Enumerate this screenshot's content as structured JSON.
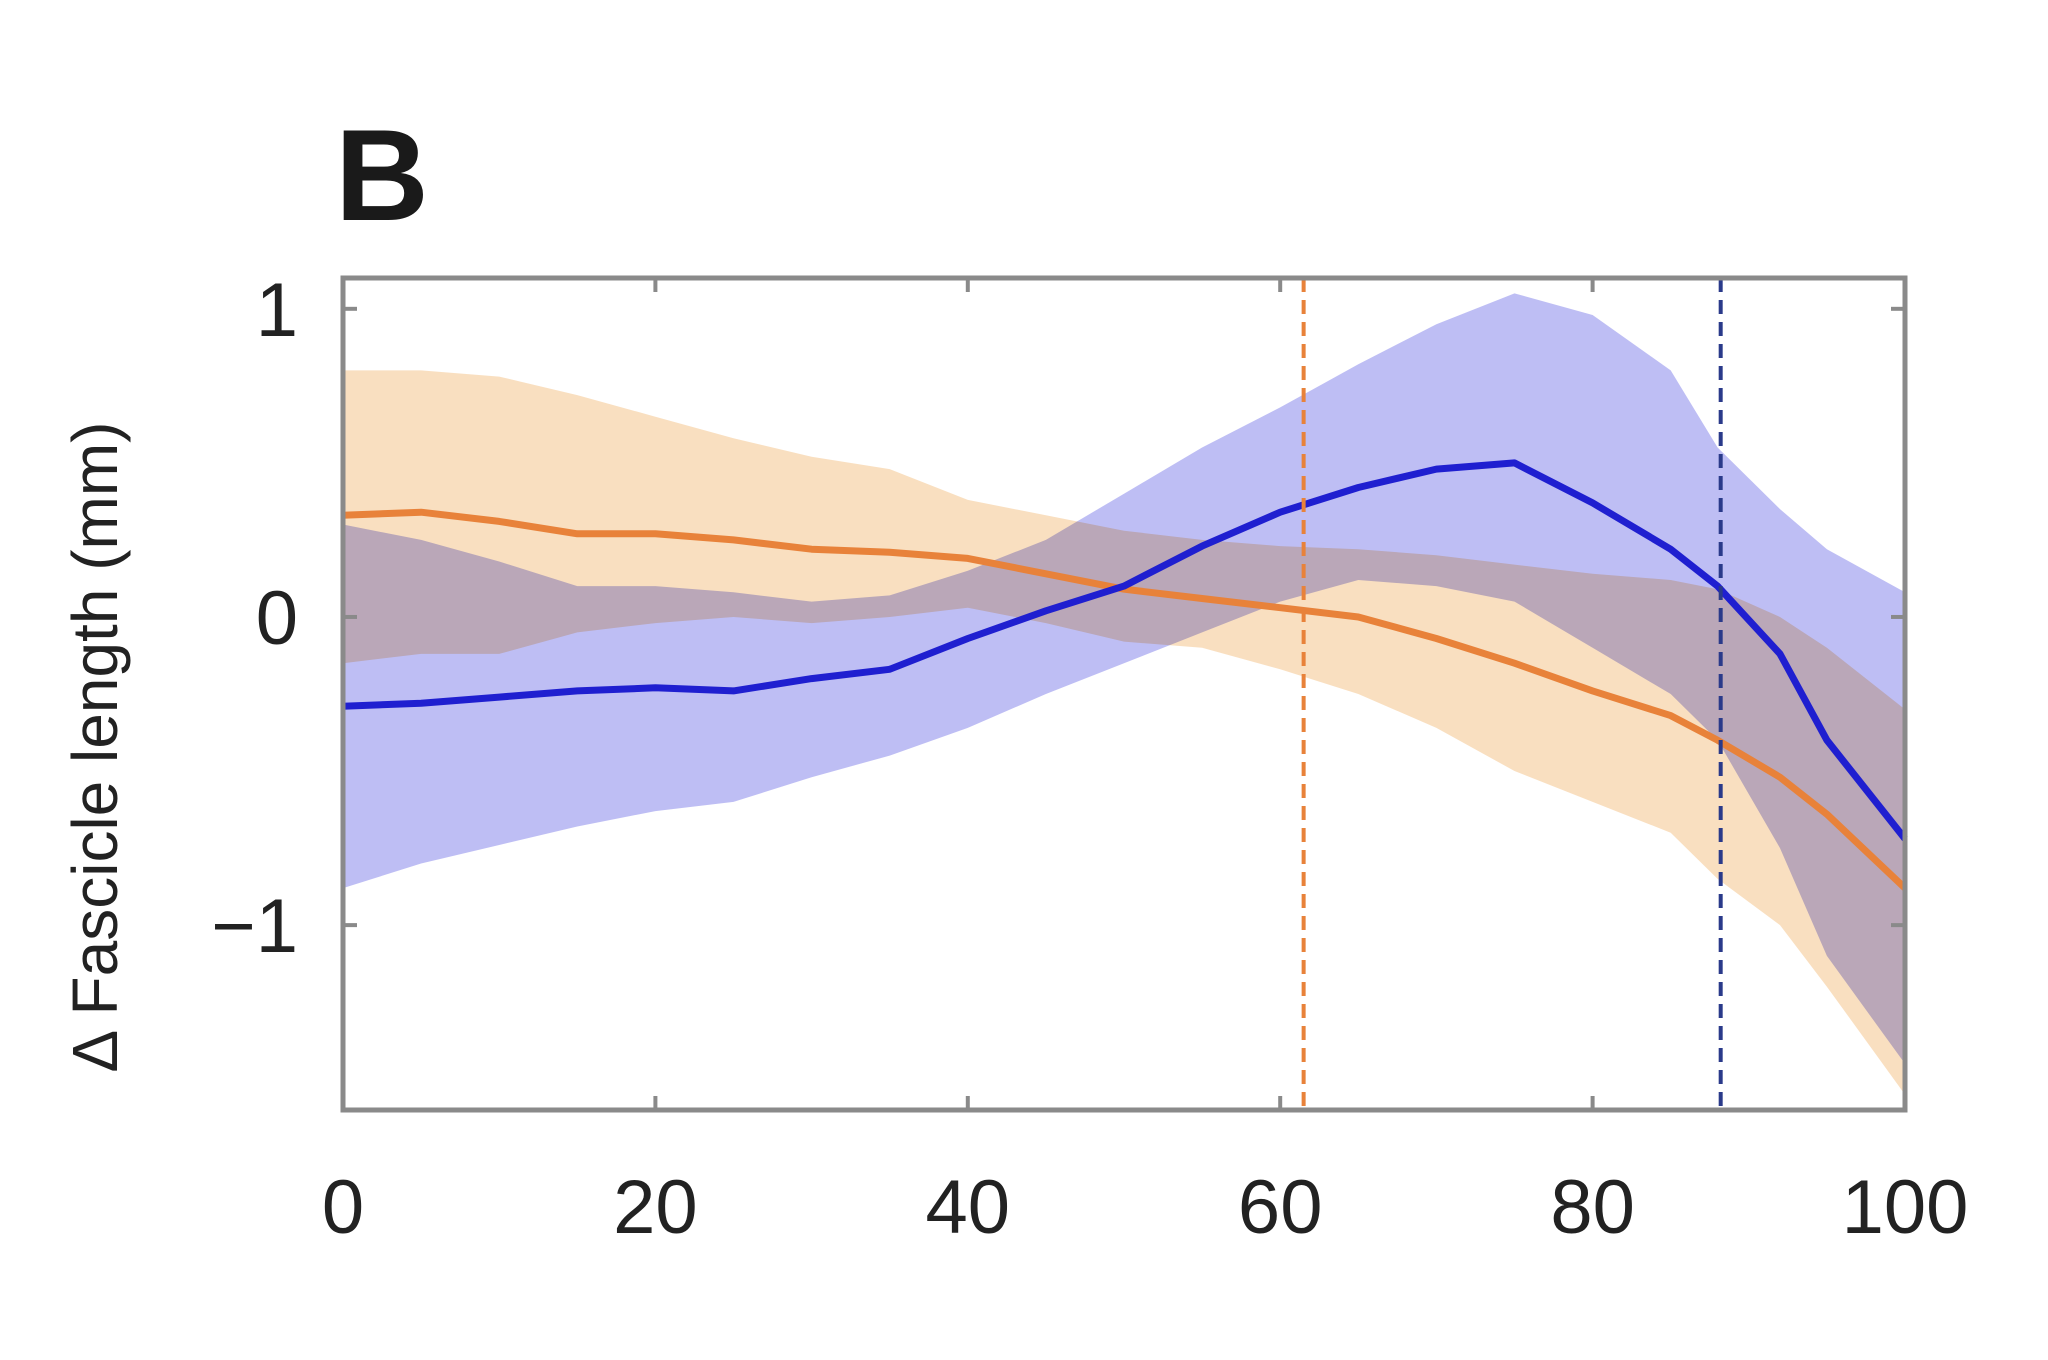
{
  "panel_label": "B",
  "chart_data": {
    "type": "line",
    "title": "",
    "xlabel": "",
    "ylabel": "Δ Fascicle length (mm)",
    "xlim": [
      0,
      100
    ],
    "ylim": [
      -1.6,
      1.1
    ],
    "xticks": [
      0,
      20,
      40,
      60,
      80,
      100
    ],
    "xtick_labels": [
      "0",
      "20",
      "40",
      "60",
      "80",
      "100"
    ],
    "yticks": [
      -1,
      0,
      1
    ],
    "ytick_labels": [
      "−1",
      "0",
      "1"
    ],
    "grid": false,
    "legend": "none",
    "colors": {
      "blue_line": "#1f1fd0",
      "blue_band": "#b8b8f4",
      "orange_line": "#e8823a",
      "orange_band": "#f9ddbd",
      "overlap": "#b89cbf",
      "axis": "#8a8a8a",
      "blue_marker": "#2a3a8a",
      "orange_marker": "#e8823a"
    },
    "series": [
      {
        "color": "blue",
        "x": [
          0,
          5,
          10,
          15,
          20,
          25,
          30,
          35,
          40,
          45,
          50,
          55,
          60,
          65,
          70,
          75,
          80,
          85,
          88,
          92,
          95,
          100
        ],
        "y": [
          -0.29,
          -0.28,
          -0.26,
          -0.24,
          -0.23,
          -0.24,
          -0.2,
          -0.17,
          -0.07,
          0.02,
          0.1,
          0.23,
          0.34,
          0.42,
          0.48,
          0.5,
          0.37,
          0.22,
          0.1,
          -0.12,
          -0.4,
          -0.72
        ],
        "lower": [
          -0.88,
          -0.8,
          -0.74,
          -0.68,
          -0.63,
          -0.6,
          -0.52,
          -0.45,
          -0.36,
          -0.25,
          -0.15,
          -0.05,
          0.05,
          0.12,
          0.1,
          0.05,
          -0.1,
          -0.25,
          -0.4,
          -0.75,
          -1.1,
          -1.45
        ],
        "upper": [
          0.3,
          0.25,
          0.18,
          0.1,
          0.1,
          0.08,
          0.05,
          0.07,
          0.15,
          0.25,
          0.4,
          0.55,
          0.68,
          0.82,
          0.95,
          1.05,
          0.98,
          0.8,
          0.55,
          0.35,
          0.22,
          0.08
        ]
      },
      {
        "color": "orange",
        "x": [
          0,
          5,
          10,
          15,
          20,
          25,
          30,
          35,
          40,
          45,
          50,
          55,
          60,
          65,
          70,
          75,
          80,
          85,
          88,
          92,
          95,
          100
        ],
        "y": [
          0.33,
          0.34,
          0.31,
          0.27,
          0.27,
          0.25,
          0.22,
          0.21,
          0.19,
          0.14,
          0.09,
          0.06,
          0.03,
          0.0,
          -0.07,
          -0.15,
          -0.24,
          -0.32,
          -0.4,
          -0.52,
          -0.64,
          -0.88
        ],
        "lower": [
          -0.15,
          -0.12,
          -0.12,
          -0.05,
          -0.02,
          0.0,
          -0.02,
          0.0,
          0.03,
          -0.02,
          -0.08,
          -0.1,
          -0.17,
          -0.25,
          -0.36,
          -0.5,
          -0.6,
          -0.7,
          -0.85,
          -1.0,
          -1.2,
          -1.55
        ],
        "upper": [
          0.8,
          0.8,
          0.78,
          0.72,
          0.65,
          0.58,
          0.52,
          0.48,
          0.38,
          0.33,
          0.28,
          0.25,
          0.23,
          0.22,
          0.2,
          0.17,
          0.14,
          0.12,
          0.09,
          0.0,
          -0.1,
          -0.3
        ]
      }
    ],
    "vlines": [
      {
        "x": 61.5,
        "color": "orange",
        "style": "dashed"
      },
      {
        "x": 88.2,
        "color": "blue",
        "style": "dashed"
      }
    ]
  }
}
